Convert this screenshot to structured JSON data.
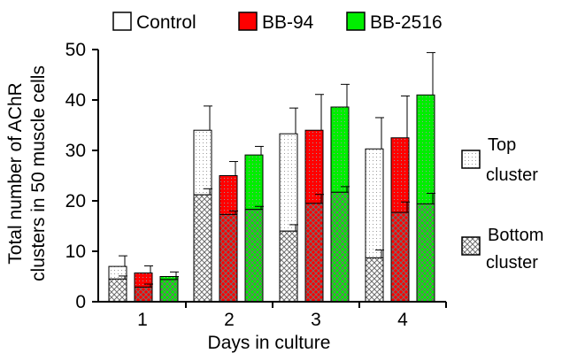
{
  "chart_data": {
    "type": "bar",
    "stacked": true,
    "categories": [
      "1",
      "2",
      "3",
      "4"
    ],
    "series": [
      {
        "name": "Control",
        "color": "#ffffff",
        "top_total": [
          7,
          34,
          33.3,
          30.3
        ],
        "bottom": [
          4.5,
          21.2,
          14,
          8.7
        ],
        "error": [
          2.1,
          4.8,
          5.1,
          6.2
        ]
      },
      {
        "name": "BB-94",
        "color": "#ff0000",
        "top_total": [
          5.7,
          25,
          34,
          32.5
        ],
        "bottom": [
          2.9,
          17.3,
          19.5,
          17.7
        ],
        "error": [
          1.4,
          2.8,
          7.1,
          8.3
        ]
      },
      {
        "name": "BB-2516",
        "color": "#00ee00",
        "top_total": [
          5,
          29.1,
          38.6,
          41
        ],
        "bottom": [
          4.4,
          18.3,
          21.7,
          19.4
        ],
        "error": [
          0.9,
          1.7,
          4.5,
          8.4
        ]
      }
    ],
    "ylabel_line1": "Total number of AChR",
    "ylabel_line2": "clusters in 50 muscle cells",
    "xlabel": "Days in culture",
    "ylim": [
      0,
      50
    ],
    "yticks": [
      "0",
      "10",
      "20",
      "30",
      "40",
      "50"
    ],
    "legend_position": "top",
    "segment_legend": [
      {
        "label_line1": "Top",
        "label_line2": "cluster",
        "pattern": "dotted"
      },
      {
        "label_line1": "Bottom",
        "label_line2": "cluster",
        "pattern": "crosshatch"
      }
    ]
  }
}
